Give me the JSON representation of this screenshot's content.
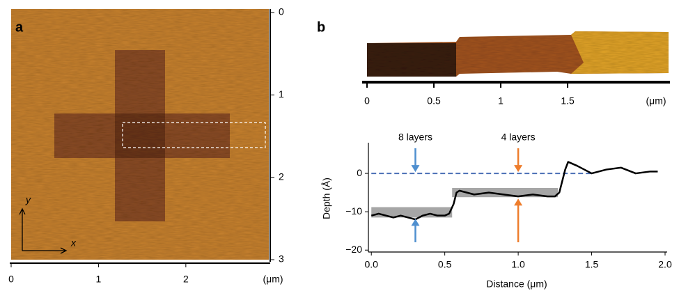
{
  "chart_data": [
    {
      "type": "image",
      "label": "a",
      "xlim": [
        0,
        2.95
      ],
      "xticks": [
        0,
        1,
        2
      ],
      "x_unit": "(μm)",
      "ylim": [
        0,
        3
      ],
      "yticks": [
        0,
        1,
        2,
        3
      ],
      "x_arrow": "x",
      "y_arrow": "y"
    },
    {
      "type": "image",
      "label": "b",
      "xlim": [
        0,
        2.26
      ],
      "xticks": [
        0,
        0.5,
        1,
        1.5
      ],
      "x_unit": "(μm)"
    },
    {
      "type": "line",
      "xlabel": "Distance (μm)",
      "ylabel": "Depth (Å)",
      "xlim": [
        -0.02,
        2.0
      ],
      "xticks": [
        {
          "value": 0,
          "label": "0.0"
        },
        0.5,
        {
          "value": 1,
          "label": "1.0"
        },
        1.5,
        {
          "value": 2,
          "label": "2.0"
        }
      ],
      "ylim": [
        -20.5,
        8
      ],
      "yticks": [
        {
          "value": -20,
          "label": "−20"
        },
        {
          "value": -10,
          "label": "−10"
        },
        0
      ],
      "series": [
        {
          "color": "#000000",
          "x": [
            0.0,
            0.05,
            0.1,
            0.15,
            0.2,
            0.25,
            0.3,
            0.35,
            0.4,
            0.45,
            0.5,
            0.53,
            0.56,
            0.58,
            0.6,
            0.65,
            0.7,
            0.8,
            0.9,
            1.0,
            1.1,
            1.2,
            1.25,
            1.28,
            1.3,
            1.32,
            1.34,
            1.4,
            1.5,
            1.6,
            1.7,
            1.8,
            1.9,
            1.95
          ],
          "values": [
            -11,
            -10.5,
            -11,
            -11.5,
            -11,
            -11.5,
            -12,
            -11,
            -10.5,
            -11,
            -11,
            -10.5,
            -8,
            -5,
            -4.5,
            -5,
            -5.5,
            -5,
            -5.5,
            -6,
            -5.5,
            -6,
            -6,
            -5,
            -2,
            1,
            3,
            2,
            0,
            1,
            1.5,
            0,
            0.5,
            0.5
          ]
        }
      ],
      "reference": {
        "value": 0,
        "x": [
          0,
          1.5
        ],
        "color": "#4a6fb5"
      },
      "bands": [
        {
          "x": [
            0,
            0.55
          ],
          "y": [
            -11.5,
            -8.8
          ]
        },
        {
          "x": [
            0.55,
            1.27
          ],
          "y": [
            -6.2,
            -3.8
          ]
        }
      ],
      "annotations": [
        {
          "text": "8 layers",
          "x": 0.3,
          "color": "#4f8fcf"
        },
        {
          "text": "4 layers",
          "x": 1.0,
          "color": "#ee7d2c"
        }
      ]
    }
  ]
}
